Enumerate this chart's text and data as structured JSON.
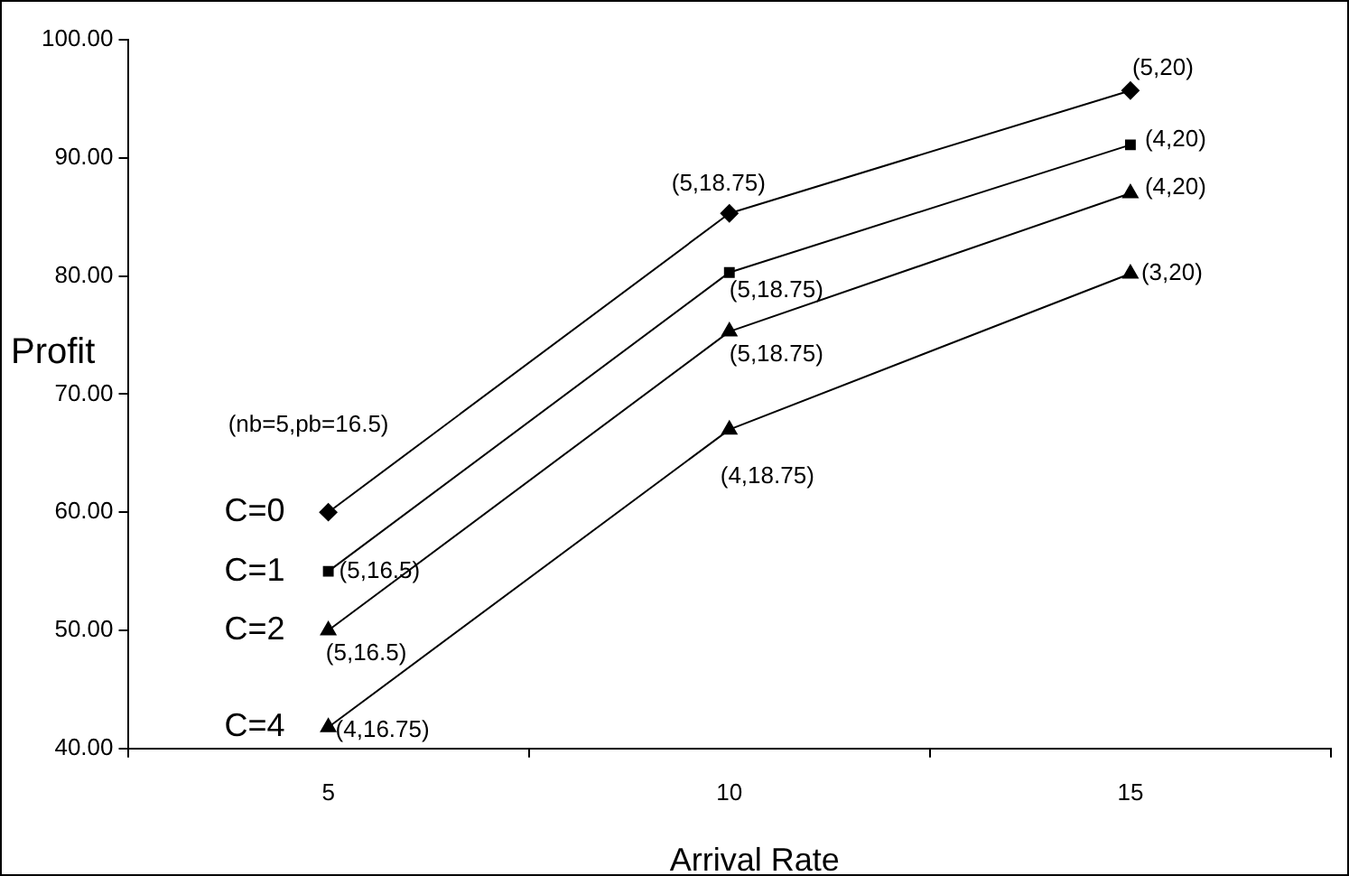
{
  "chart_data": {
    "type": "line",
    "xlabel": "Arrival Rate",
    "ylabel": "Profit",
    "categories": [
      "5",
      "10",
      "15"
    ],
    "series": [
      {
        "name": "C=0",
        "color": "#000000",
        "marker": "diamond",
        "values": [
          60,
          85.3,
          95.7
        ]
      },
      {
        "name": "C=1",
        "color": "#000000",
        "marker": "square",
        "values": [
          55,
          80.3,
          91.1
        ]
      },
      {
        "name": "C=2",
        "color": "#000000",
        "marker": "triangle",
        "values": [
          50,
          75.3,
          87
        ]
      },
      {
        "name": "C=4",
        "color": "#000000",
        "marker": "triangle",
        "values": [
          41.8,
          67,
          80.2
        ]
      }
    ],
    "ylim": [
      40,
      100
    ],
    "yticks": [
      {
        "value": 40,
        "label": "40.00"
      },
      {
        "value": 50,
        "label": "50.00"
      },
      {
        "value": 60,
        "label": "60.00"
      },
      {
        "value": 70,
        "label": "70.00"
      },
      {
        "value": 80,
        "label": "80.00"
      },
      {
        "value": 90,
        "label": "90.00"
      },
      {
        "value": 100,
        "label": "100.00"
      }
    ],
    "grid": false,
    "legend": false,
    "annotations": [
      "(nb=5,pb=16.5)",
      {
        "text": "(5,16.5)",
        "x": "5",
        "y": 55
      },
      {
        "text": "(5,16.5)",
        "x": "5",
        "y": 50
      },
      {
        "text": "(4,16.75)",
        "x": "5",
        "y": 41.8
      },
      {
        "text": "(5,18.75)",
        "x": "10",
        "y": 85.3
      },
      {
        "text": "(5,18.75)",
        "x": "10",
        "y": 80.3
      },
      {
        "text": "(5,18.75)",
        "x": "10",
        "y": 75.3
      },
      {
        "text": "(4,18.75)",
        "x": "10",
        "y": 67
      },
      {
        "text": "(5,20)",
        "x": "15",
        "y": 95.7
      },
      {
        "text": "(4,20)",
        "x": "15",
        "y": 91.1
      },
      {
        "text": "(4,20)",
        "x": "15",
        "y": 87
      },
      {
        "text": "(3,20)",
        "x": "15",
        "y": 80.2
      }
    ]
  }
}
